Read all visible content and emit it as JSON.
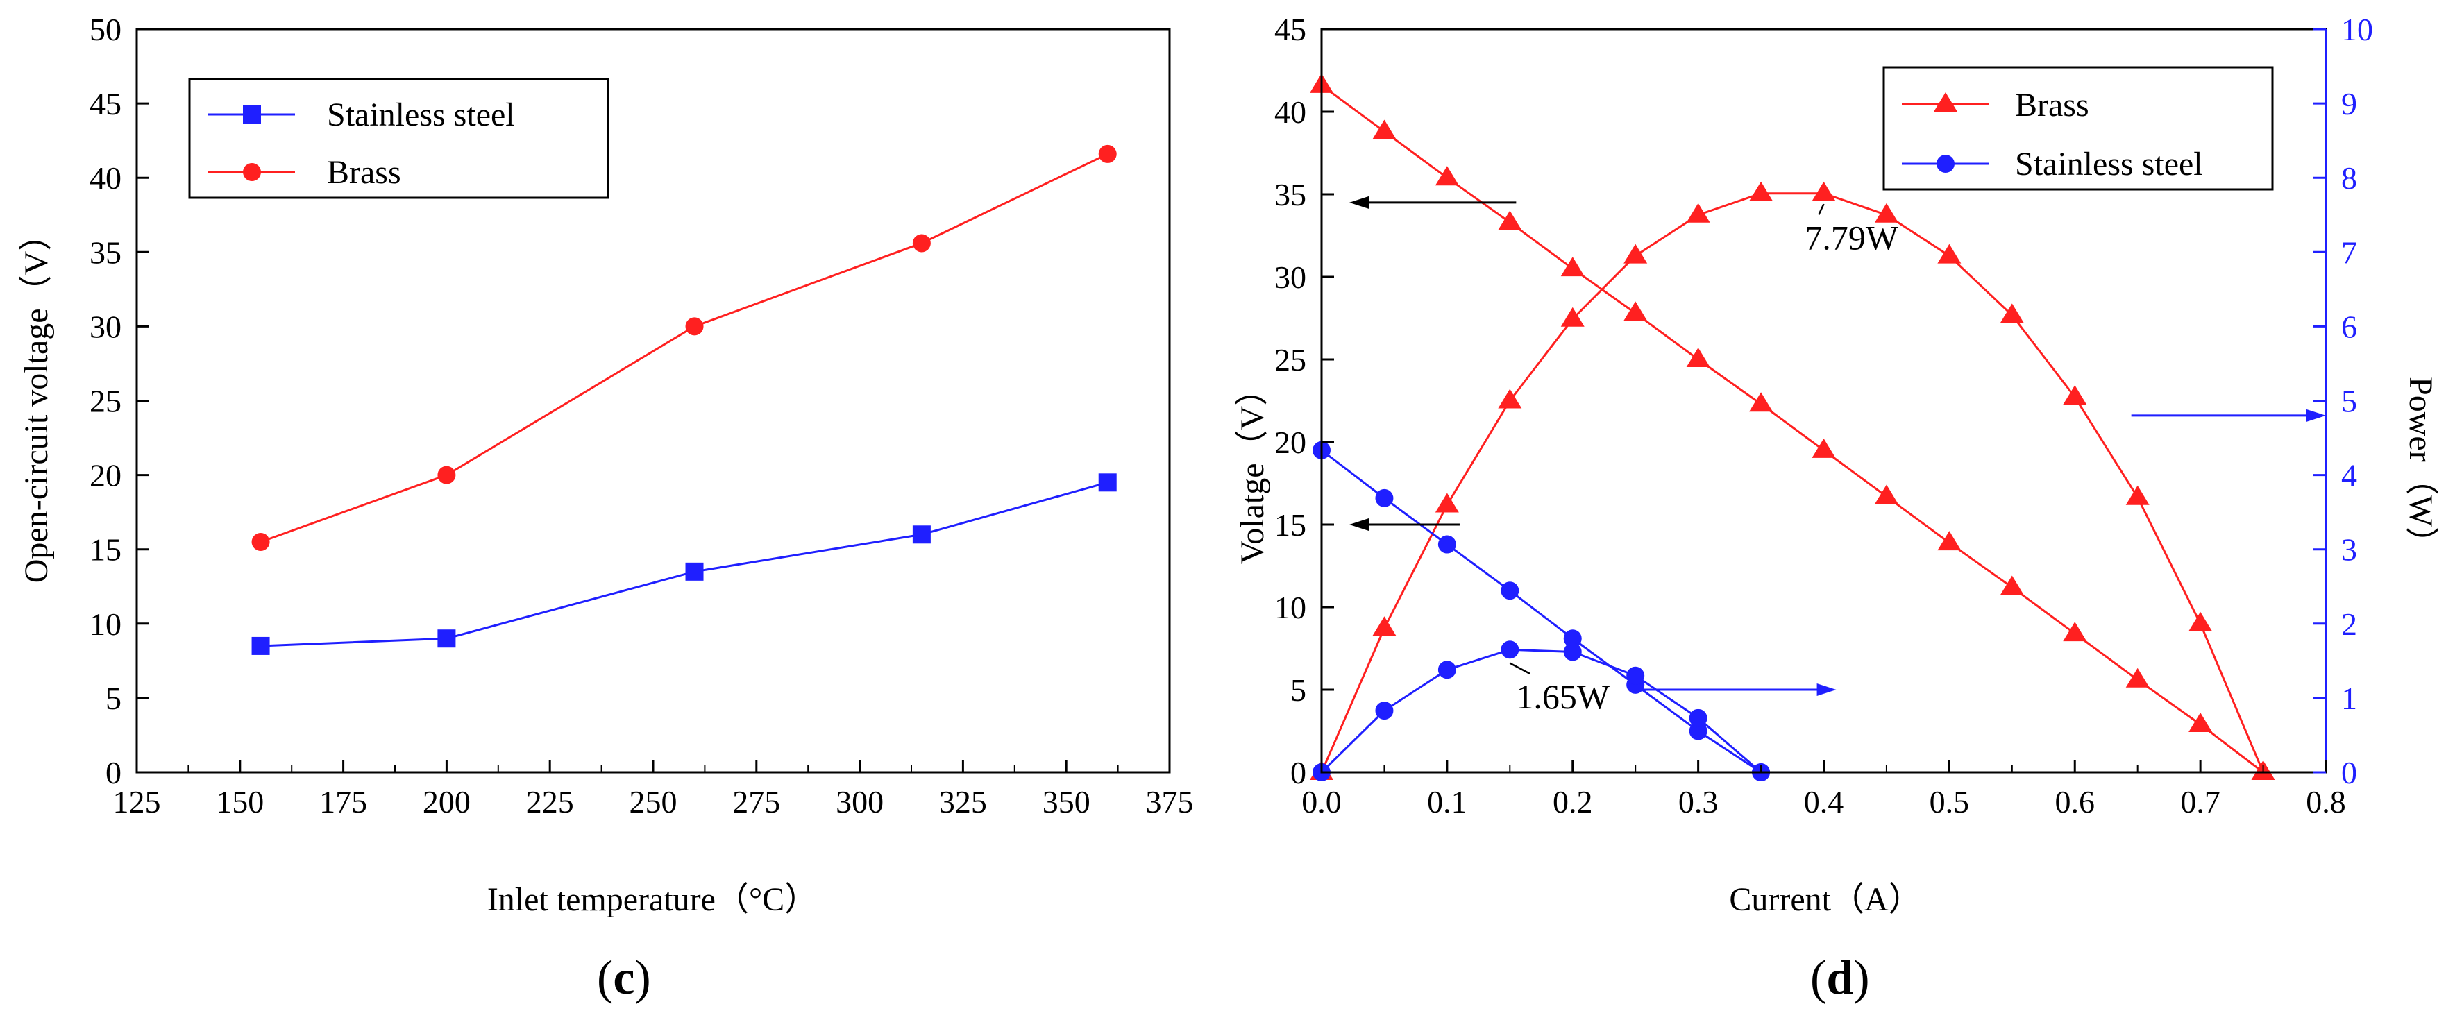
{
  "panels": [
    {
      "label_open": "(",
      "label_letter": "c",
      "label_close": ")"
    },
    {
      "label_open": "(",
      "label_letter": "d",
      "label_close": ")"
    }
  ],
  "colors": {
    "red": "#ff2020",
    "blue": "#1f1fff",
    "axis": "#000000",
    "right_axis": "#1f1fff"
  },
  "chart_data": [
    {
      "type": "line",
      "xlabel": "Inlet temperature（°C）",
      "ylabel": "Open-circuit voltage（V）",
      "xlim": [
        125,
        375
      ],
      "ylim": [
        0,
        50
      ],
      "xticks": [
        125,
        150,
        175,
        200,
        225,
        250,
        275,
        300,
        325,
        350,
        375
      ],
      "yticks": [
        0,
        5,
        10,
        15,
        20,
        25,
        30,
        35,
        40,
        45,
        50
      ],
      "legend_position": "top-left",
      "series": [
        {
          "name": "Stainless steel",
          "color": "blue",
          "marker": "square",
          "x": [
            155,
            200,
            260,
            315,
            360
          ],
          "y": [
            8.5,
            9.0,
            13.5,
            16.0,
            19.5
          ]
        },
        {
          "name": "Brass",
          "color": "red",
          "marker": "circle",
          "x": [
            155,
            200,
            260,
            315,
            360
          ],
          "y": [
            15.5,
            20.0,
            30.0,
            35.6,
            41.6
          ]
        }
      ]
    },
    {
      "type": "line",
      "xlabel": "Current（A）",
      "ylabel": "Volatge（V）",
      "y2label": "Power（W）",
      "xlim": [
        0,
        0.8
      ],
      "ylim": [
        0,
        45
      ],
      "y2lim": [
        0,
        10
      ],
      "xticks": [
        0.0,
        0.1,
        0.2,
        0.3,
        0.4,
        0.5,
        0.6,
        0.7,
        0.8
      ],
      "xtick_labels": [
        "0.0",
        "0.1",
        "0.2",
        "0.3",
        "0.4",
        "0.5",
        "0.6",
        "0.7",
        "0.8"
      ],
      "yticks": [
        0,
        5,
        10,
        15,
        20,
        25,
        30,
        35,
        40,
        45
      ],
      "y2ticks": [
        0,
        1,
        2,
        3,
        4,
        5,
        6,
        7,
        8,
        9,
        10
      ],
      "legend_position": "top-right",
      "legend": [
        {
          "name": "Brass",
          "color": "red",
          "marker": "triangle"
        },
        {
          "name": "Stainless steel",
          "color": "blue",
          "marker": "circle"
        }
      ],
      "series": [
        {
          "name": "Brass voltage",
          "axis": "left",
          "color": "red",
          "marker": "triangle",
          "x": [
            0,
            0.05,
            0.1,
            0.15,
            0.2,
            0.25,
            0.3,
            0.35,
            0.4,
            0.45,
            0.5,
            0.55,
            0.6,
            0.65,
            0.7,
            0.75
          ],
          "y": [
            41.6,
            38.8,
            36.0,
            33.3,
            30.5,
            27.8,
            25.0,
            22.3,
            19.5,
            16.7,
            13.9,
            11.2,
            8.4,
            5.6,
            2.9,
            0
          ]
        },
        {
          "name": "Brass power",
          "axis": "right",
          "color": "red",
          "marker": "triangle",
          "x": [
            0,
            0.05,
            0.1,
            0.15,
            0.2,
            0.25,
            0.3,
            0.35,
            0.4,
            0.45,
            0.5,
            0.55,
            0.6,
            0.65,
            0.7,
            0.75
          ],
          "y": [
            0,
            1.94,
            3.6,
            5.0,
            6.1,
            6.95,
            7.5,
            7.79,
            7.79,
            7.5,
            6.95,
            6.15,
            5.05,
            3.7,
            2.0,
            0
          ]
        },
        {
          "name": "Stainless steel voltage",
          "axis": "left",
          "color": "blue",
          "marker": "circle",
          "x": [
            0,
            0.05,
            0.1,
            0.15,
            0.2,
            0.25,
            0.3,
            0.35
          ],
          "y": [
            19.5,
            16.6,
            13.8,
            11.0,
            8.1,
            5.3,
            2.5,
            0
          ]
        },
        {
          "name": "Stainless steel power",
          "axis": "right",
          "color": "blue",
          "marker": "circle",
          "x": [
            0,
            0.05,
            0.1,
            0.15,
            0.2,
            0.25,
            0.3,
            0.35
          ],
          "y": [
            0,
            0.83,
            1.38,
            1.65,
            1.62,
            1.3,
            0.73,
            0
          ]
        }
      ],
      "annotations": [
        {
          "text": "7.79W",
          "x": 0.385,
          "y": 32.0,
          "target_x": 0.4,
          "target_y": 35.0
        },
        {
          "text": "1.65W",
          "x": 0.155,
          "y": 4.2,
          "target_x": 0.15,
          "target_y": 7.2
        }
      ],
      "axis_arrows": [
        {
          "target": "left",
          "color": "black",
          "x_from": 0.155,
          "x_to": 0.0,
          "y": 34.5
        },
        {
          "target": "left",
          "color": "black",
          "x_from": 0.11,
          "x_to": 0.0,
          "y": 15.0
        },
        {
          "target": "right",
          "color": "blue",
          "x_from": 0.255,
          "x_to": 0.41,
          "y": 5.0
        },
        {
          "target": "right",
          "color": "blue",
          "x_from": 0.645,
          "x_to": 0.8,
          "y": 21.6
        }
      ]
    }
  ]
}
